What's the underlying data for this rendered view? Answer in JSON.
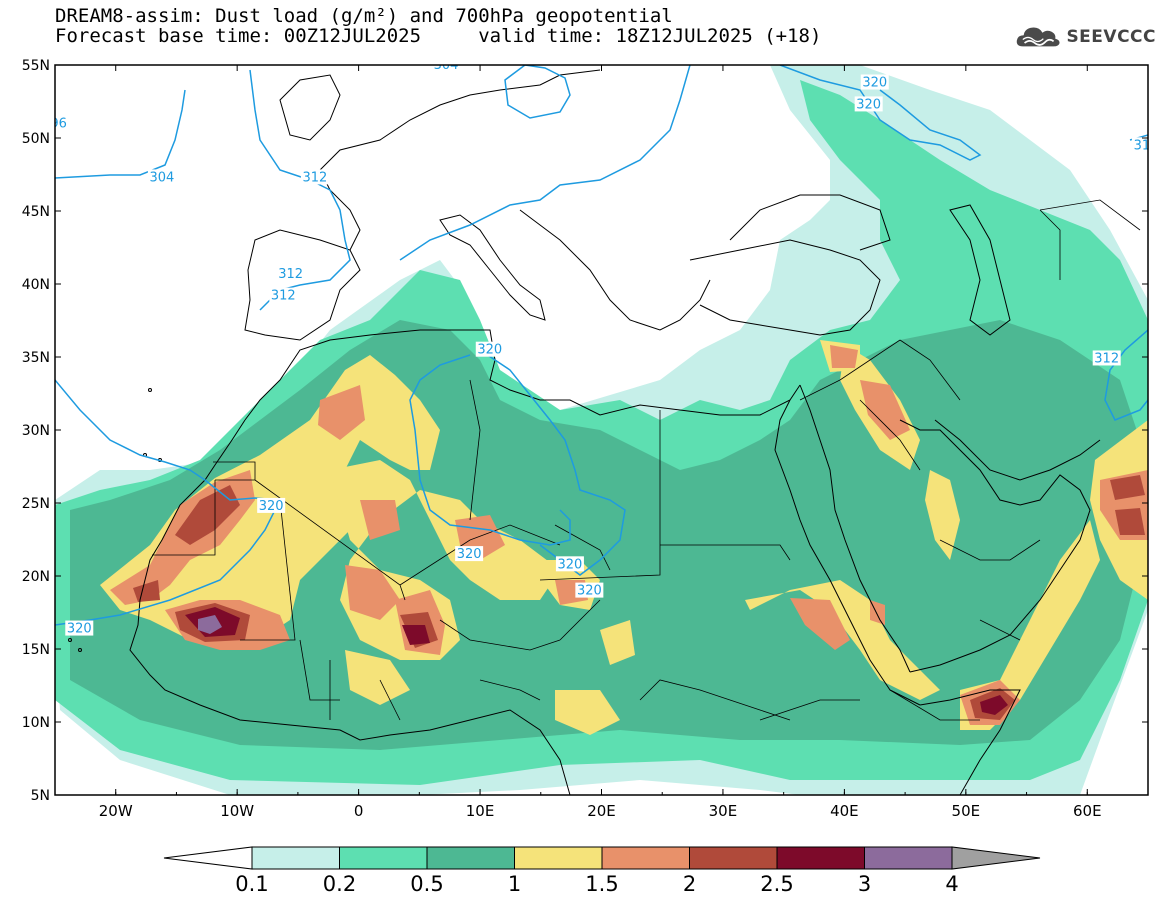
{
  "title": {
    "line1": "DREAM8-assim: Dust load (g/m²) and 700hPa geopotential",
    "line2": "Forecast base time: 00Z12JUL2025     valid time: 18Z12JUL2025 (+18)"
  },
  "logo": {
    "text": "SEEVCCC",
    "icon": "cloud-logo-icon"
  },
  "map": {
    "region": "North Africa, Europe and Middle East",
    "lon_range": [
      -25,
      65
    ],
    "lat_range": [
      5,
      55
    ],
    "x_ticks": [
      {
        "lon": -20,
        "label": "20W"
      },
      {
        "lon": -10,
        "label": "10W"
      },
      {
        "lon": 0,
        "label": "0"
      },
      {
        "lon": 10,
        "label": "10E"
      },
      {
        "lon": 20,
        "label": "20E"
      },
      {
        "lon": 30,
        "label": "30E"
      },
      {
        "lon": 40,
        "label": "40E"
      },
      {
        "lon": 50,
        "label": "50E"
      },
      {
        "lon": 60,
        "label": "60E"
      }
    ],
    "y_ticks": [
      {
        "lat": 55,
        "label": "55N"
      },
      {
        "lat": 50,
        "label": "50N"
      },
      {
        "lat": 45,
        "label": "45N"
      },
      {
        "lat": 40,
        "label": "40N"
      },
      {
        "lat": 35,
        "label": "35N"
      },
      {
        "lat": 30,
        "label": "30N"
      },
      {
        "lat": 25,
        "label": "25N"
      },
      {
        "lat": 20,
        "label": "20N"
      },
      {
        "lat": 15,
        "label": "15N"
      },
      {
        "lat": 10,
        "label": "10N"
      },
      {
        "lat": 5,
        "label": "5N"
      }
    ],
    "contour_labels": [
      {
        "text": "304",
        "lon": 7.2,
        "lat": 55.0
      },
      {
        "text": "320",
        "lon": 42.5,
        "lat": 53.8
      },
      {
        "text": "320",
        "lon": 42.0,
        "lat": 52.3
      },
      {
        "text": "96",
        "lon": -24.7,
        "lat": 51.0
      },
      {
        "text": "31",
        "lon": 64.5,
        "lat": 49.5
      },
      {
        "text": "304",
        "lon": -16.2,
        "lat": 47.3
      },
      {
        "text": "312",
        "lon": -3.6,
        "lat": 47.3
      },
      {
        "text": "312",
        "lon": -5.6,
        "lat": 40.7
      },
      {
        "text": "312",
        "lon": -6.2,
        "lat": 39.2
      },
      {
        "text": "320",
        "lon": 10.8,
        "lat": 35.5
      },
      {
        "text": "312",
        "lon": 61.6,
        "lat": 34.9
      },
      {
        "text": "320",
        "lon": -7.2,
        "lat": 24.8
      },
      {
        "text": "320",
        "lon": 9.1,
        "lat": 21.5
      },
      {
        "text": "320",
        "lon": 17.4,
        "lat": 20.8
      },
      {
        "text": "320",
        "lon": 19.0,
        "lat": 19.0
      },
      {
        "text": "320",
        "lon": -23.0,
        "lat": 16.4
      }
    ]
  },
  "legend": {
    "levels": [
      "0.1",
      "0.2",
      "0.5",
      "1",
      "1.5",
      "2",
      "2.5",
      "3",
      "4"
    ],
    "colors": [
      "#ffffff",
      "#c6efe9",
      "#5ddfb1",
      "#4db893",
      "#f5e37a",
      "#e8916a",
      "#b04a3a",
      "#7d0a2a",
      "#8c6b9c",
      "#a0a0a0"
    ]
  },
  "colors": {
    "contour": "#1e9be0",
    "c1": "#c6efe9",
    "c2": "#5ddfb1",
    "c3": "#4db893",
    "c4": "#f5e37a",
    "c5": "#e8916a",
    "c6": "#b04a3a",
    "c7": "#7d0a2a",
    "c8": "#8c6b9c"
  }
}
